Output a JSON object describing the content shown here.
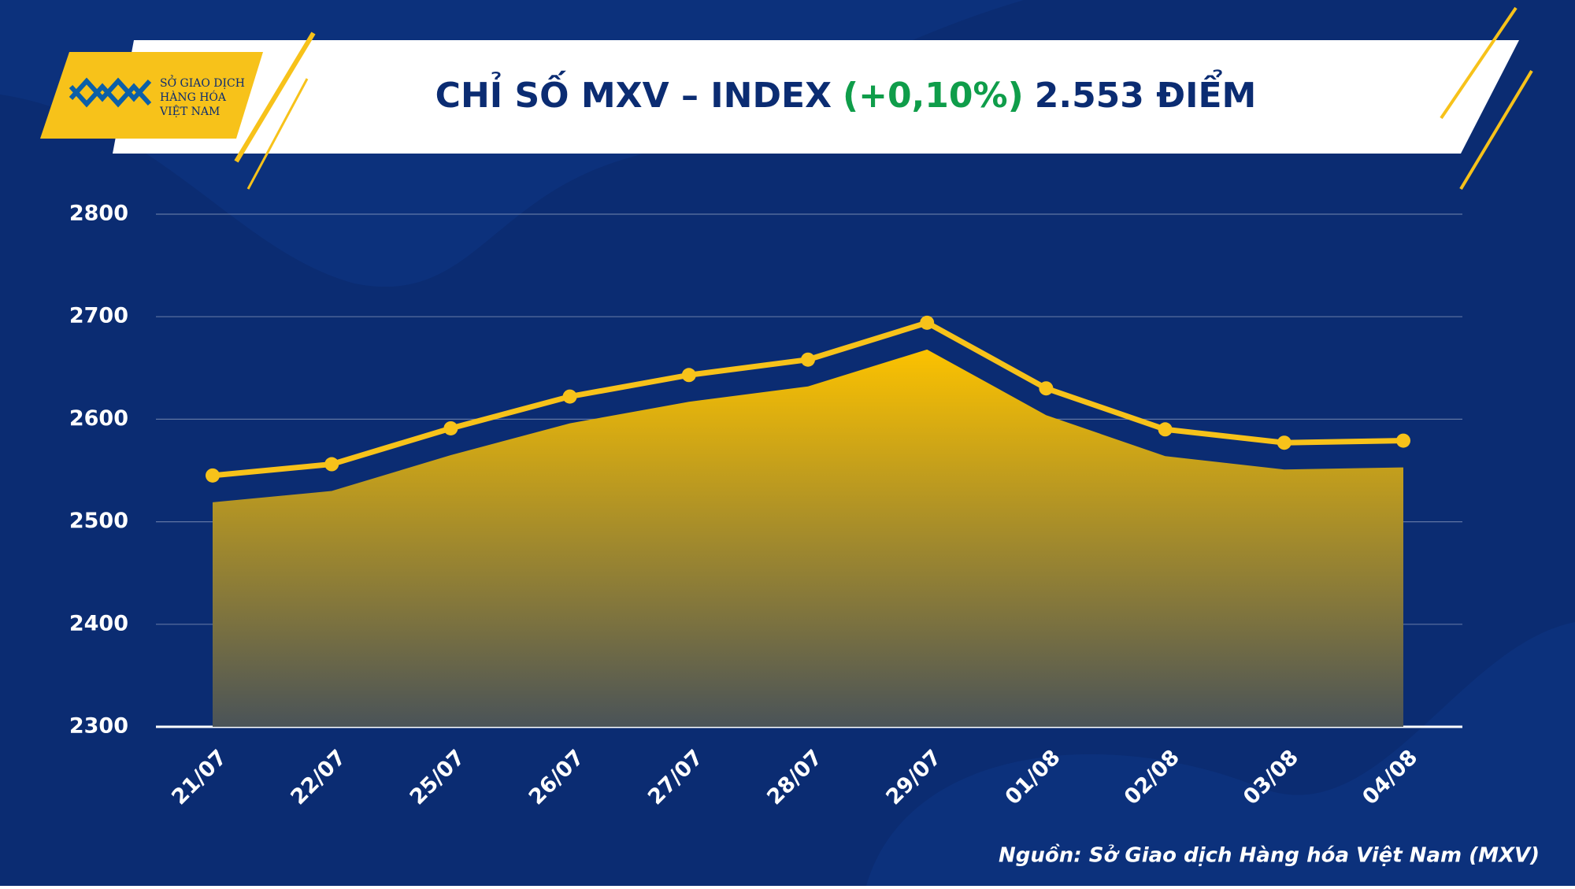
{
  "logo": [
    "SỞ GIAO DỊCH",
    "HÀNG HÓA",
    "VIỆT NAM"
  ],
  "chart_data": {
    "type": "area",
    "title": "CHỈ SỐ MXV – INDEX",
    "title_change": "(+0,10%)",
    "title_value": "2.553 ĐIỂM",
    "categories": [
      "21/07",
      "22/07",
      "25/07",
      "26/07",
      "27/07",
      "28/07",
      "29/07",
      "01/08",
      "02/08",
      "03/08",
      "04/08"
    ],
    "series": [
      {
        "name": "MXV-Index",
        "color": "#f7c21a",
        "values": [
          2519,
          2530,
          2565,
          2596,
          2617,
          2632,
          2668,
          2604,
          2564,
          2551,
          2553
        ]
      }
    ],
    "ylim": [
      2300,
      2800
    ],
    "yticks": [
      2300,
      2400,
      2500,
      2600,
      2700,
      2800
    ],
    "grid": true
  },
  "source": "Nguồn: Sở Giao dịch Hàng hóa Việt Nam (MXV)"
}
